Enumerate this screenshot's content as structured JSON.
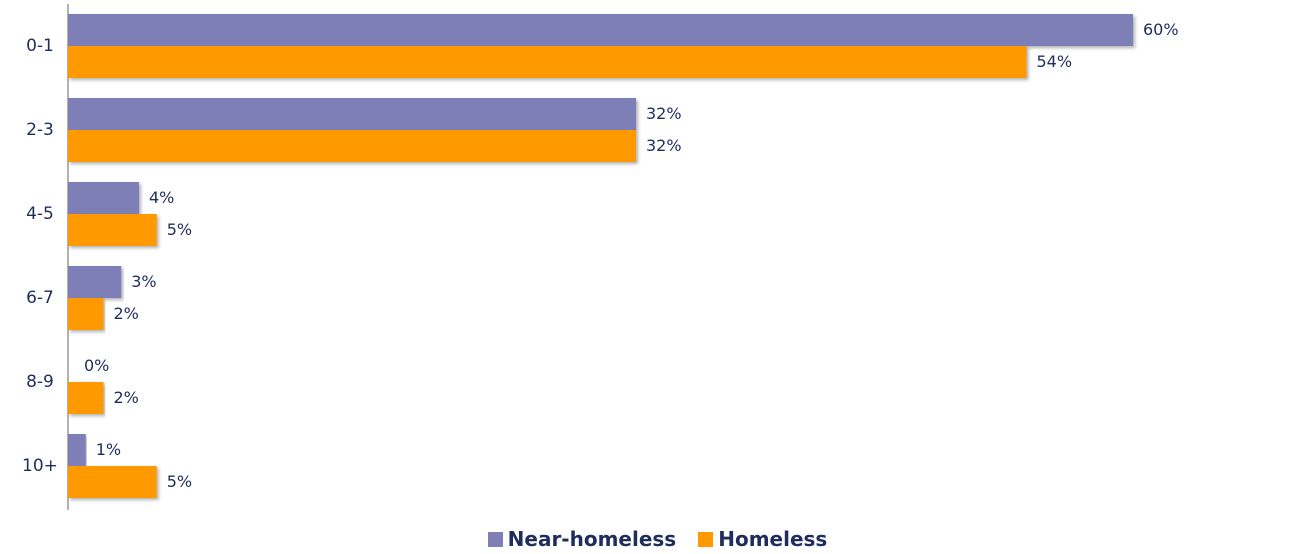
{
  "chart_data": {
    "type": "bar",
    "orientation": "horizontal",
    "categories": [
      "0-1",
      "2-3",
      "4-5",
      "6-7",
      "8-9",
      "10+"
    ],
    "series": [
      {
        "name": "Near-homeless",
        "color": "#7f7fb8",
        "values": [
          60,
          32,
          4,
          3,
          0,
          1
        ],
        "labels": [
          "60%",
          "32%",
          "4%",
          "3%",
          "0%",
          "1%"
        ]
      },
      {
        "name": "Homeless",
        "color": "#ff9900",
        "values": [
          54,
          32,
          5,
          2,
          2,
          5
        ],
        "labels": [
          "54%",
          "32%",
          "5%",
          "2%",
          "2%",
          "5%"
        ]
      }
    ],
    "xlim": [
      0,
      60
    ],
    "grid": false,
    "legend_position": "bottom"
  }
}
